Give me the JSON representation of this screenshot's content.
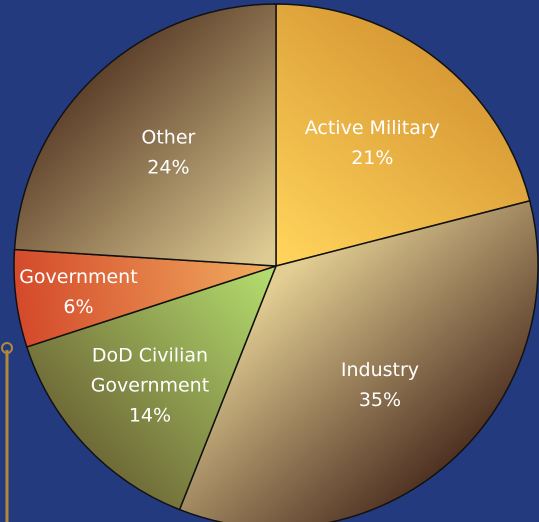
{
  "chart_data": {
    "type": "pie",
    "title": "",
    "start_angle_deg": 0,
    "direction": "clockwise",
    "slices": [
      {
        "name": "Active Military",
        "lines": [
          "Active Military",
          "21%"
        ],
        "value": 21,
        "color_light": "#ffd35a",
        "color_dark": "#d89a35"
      },
      {
        "name": "Industry",
        "lines": [
          "Industry",
          "35%"
        ],
        "value": 35,
        "color_light": "#e2cd92",
        "color_dark": "#4f3122"
      },
      {
        "name": "DoD Civilian Government",
        "lines": [
          "DoD Civilian",
          "Government",
          "14%"
        ],
        "value": 14,
        "color_light": "#b2da6c",
        "color_dark": "#6f6a37"
      },
      {
        "name": "Government",
        "lines": [
          "Government",
          "6%"
        ],
        "value": 6,
        "color_light": "#f0a95e",
        "color_dark": "#d4492a"
      },
      {
        "name": "Other",
        "lines": [
          "Other",
          "24%"
        ],
        "value": 24,
        "color_light": "#decb93",
        "color_dark": "#5e412b"
      }
    ]
  }
}
